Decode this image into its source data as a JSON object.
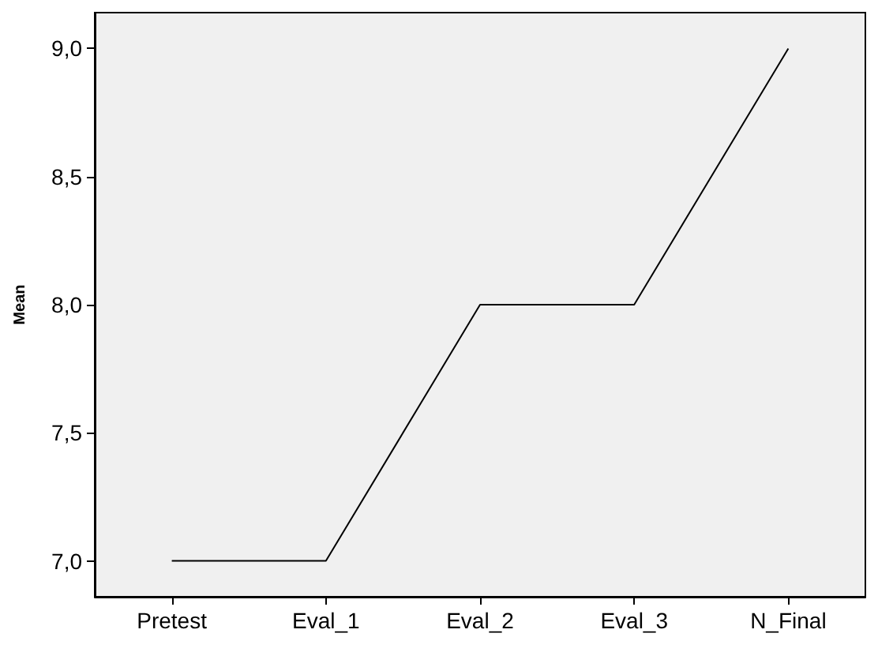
{
  "chart_data": {
    "type": "line",
    "ylabel": "Mean",
    "categories": [
      "Pretest",
      "Eval_1",
      "Eval_2",
      "Eval_3",
      "N_Final"
    ],
    "series": [
      {
        "color": "#000000",
        "values": [
          7,
          7,
          8,
          8,
          9
        ]
      }
    ],
    "ylim": [
      6.86,
      9.14
    ],
    "yticks": [
      {
        "value": 7,
        "label": "7,0"
      },
      {
        "value": 7.5,
        "label": "7,5"
      },
      {
        "value": 8,
        "label": "8,0"
      },
      {
        "value": 8.5,
        "label": "8,5"
      },
      {
        "value": 9,
        "label": "9,0"
      }
    ],
    "grid": false,
    "marker": "none",
    "line_style": "solid"
  }
}
